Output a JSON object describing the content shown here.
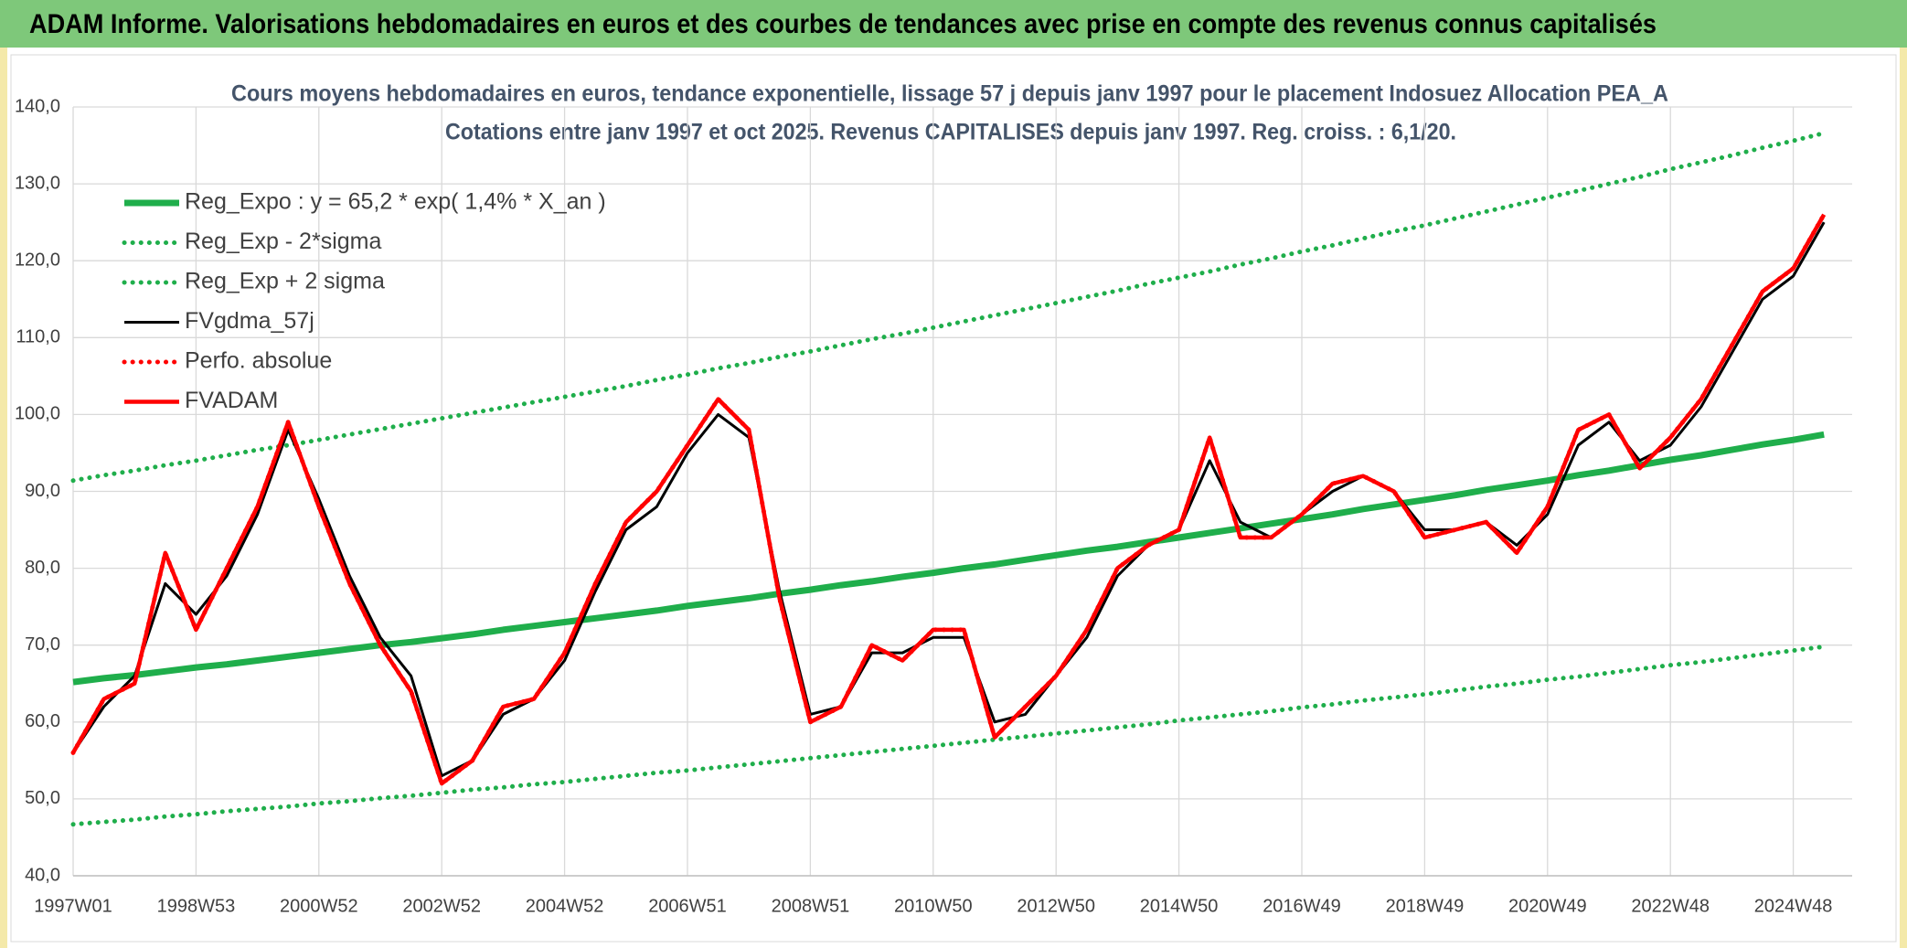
{
  "header": {
    "title": "ADAM Informe. Valorisations hebdomadaires en euros et des courbes de tendances avec prise en compte des revenus connus capitalisés"
  },
  "chart_data": {
    "type": "line",
    "title": "Cours moyens hebdomadaires en euros, tendance exponentielle, lissage 57 j depuis janv 1997 pour le placement Indosuez Allocation PEA_A",
    "subtitle": "Cotations entre janv 1997 et oct 2025. Revenus CAPITALISES depuis janv 1997. Reg. croiss. : 6,1/20.",
    "categories": [
      "1997W01",
      null,
      null,
      null,
      "1998W53",
      null,
      null,
      null,
      "2000W52",
      null,
      null,
      null,
      "2002W52",
      null,
      null,
      null,
      "2004W52",
      null,
      null,
      null,
      "2006W51",
      null,
      null,
      null,
      "2008W51",
      null,
      null,
      null,
      "2010W50",
      null,
      null,
      null,
      "2012W50",
      null,
      null,
      null,
      "2014W50",
      null,
      null,
      null,
      "2016W49",
      null,
      null,
      null,
      "2018W49",
      null,
      null,
      null,
      "2020W49",
      null,
      null,
      null,
      "2022W48",
      null,
      null,
      null,
      "2024W48",
      null
    ],
    "ylim": [
      40,
      140
    ],
    "yticks": [
      {
        "value": 40,
        "label": "40,0"
      },
      {
        "value": 50,
        "label": "50,0"
      },
      {
        "value": 60,
        "label": "60,0"
      },
      {
        "value": 70,
        "label": "70,0"
      },
      {
        "value": 80,
        "label": "80,0"
      },
      {
        "value": 90,
        "label": "90,0"
      },
      {
        "value": 100,
        "label": "100,0"
      },
      {
        "value": 110,
        "label": "110,0"
      },
      {
        "value": 120,
        "label": "120,0"
      },
      {
        "value": 130,
        "label": "130,0"
      },
      {
        "value": 140,
        "label": "140,0"
      }
    ],
    "grid": true,
    "legend": "upper left",
    "series": [
      {
        "name": "Reg_Expo : y = 65,2 * exp( 1,4% *  X_an )",
        "color": "#1fae4b",
        "line_style": "solid-thick",
        "values": [
          65.2,
          65.7,
          66.1,
          66.6,
          67.1,
          67.5,
          68.0,
          68.5,
          69.0,
          69.5,
          70.0,
          70.4,
          70.9,
          71.4,
          72.0,
          72.5,
          73.0,
          73.5,
          74.0,
          74.5,
          75.1,
          75.6,
          76.1,
          76.7,
          77.2,
          77.8,
          78.3,
          78.9,
          79.4,
          80.0,
          80.5,
          81.1,
          81.7,
          82.3,
          82.8,
          83.4,
          84.0,
          84.6,
          85.2,
          85.8,
          86.4,
          87.0,
          87.7,
          88.3,
          88.9,
          89.5,
          90.2,
          90.8,
          91.4,
          92.1,
          92.7,
          93.4,
          94.1,
          94.7,
          95.4,
          96.1,
          96.7,
          97.4
        ]
      },
      {
        "name": "Reg_Exp - 2*sigma",
        "color": "#1fae4b",
        "line_style": "dotted",
        "values": [
          46.7,
          47.0,
          47.3,
          47.7,
          48.0,
          48.4,
          48.7,
          49.0,
          49.4,
          49.7,
          50.1,
          50.4,
          50.8,
          51.2,
          51.5,
          51.9,
          52.2,
          52.6,
          53.0,
          53.4,
          53.7,
          54.1,
          54.5,
          54.9,
          55.3,
          55.7,
          56.1,
          56.5,
          56.9,
          57.3,
          57.7,
          58.1,
          58.5,
          58.9,
          59.3,
          59.7,
          60.2,
          60.6,
          61.0,
          61.4,
          61.9,
          62.3,
          62.8,
          63.2,
          63.6,
          64.1,
          64.6,
          65.0,
          65.5,
          65.9,
          66.4,
          66.9,
          67.4,
          67.8,
          68.3,
          68.8,
          69.3,
          69.8
        ]
      },
      {
        "name": "Reg_Exp + 2 sigma",
        "color": "#1fae4b",
        "line_style": "dotted",
        "values": [
          91.4,
          92.1,
          92.7,
          93.4,
          94.0,
          94.7,
          95.4,
          96.0,
          96.7,
          97.4,
          98.1,
          98.8,
          99.5,
          100.2,
          100.9,
          101.6,
          102.3,
          103.0,
          103.7,
          104.5,
          105.2,
          106.0,
          106.7,
          107.5,
          108.2,
          109.0,
          109.8,
          110.5,
          111.3,
          112.1,
          112.9,
          113.7,
          114.5,
          115.3,
          116.1,
          117.0,
          117.8,
          118.6,
          119.5,
          120.3,
          121.2,
          122.0,
          122.9,
          123.8,
          124.6,
          125.5,
          126.4,
          127.3,
          128.2,
          129.1,
          130.0,
          130.9,
          131.9,
          132.8,
          133.7,
          134.7,
          135.6,
          136.6
        ]
      },
      {
        "name": "FVgdma_57j",
        "color": "#000000",
        "line_style": "solid",
        "values": [
          56,
          62,
          66,
          78,
          74,
          79,
          87,
          98,
          89,
          79,
          71,
          66,
          53,
          55,
          61,
          63,
          68,
          77,
          85,
          88,
          95,
          100,
          97,
          77,
          61,
          62,
          69,
          69,
          71,
          71,
          60,
          61,
          66,
          71,
          79,
          83,
          85,
          94,
          86,
          84,
          87,
          90,
          92,
          90,
          85,
          85,
          86,
          83,
          87,
          96,
          99,
          94,
          96,
          101,
          108,
          115,
          118,
          125
        ]
      },
      {
        "name": "Perfo. absolue",
        "color": "#ff0000",
        "line_style": "dotted",
        "values": [
          56,
          63,
          65,
          82,
          72,
          80,
          88,
          99,
          88,
          78,
          70,
          64,
          52,
          55,
          62,
          63,
          69,
          78,
          86,
          90,
          96,
          102,
          98,
          76,
          60,
          62,
          70,
          68,
          72,
          72,
          58,
          62,
          66,
          72,
          80,
          83,
          85,
          97,
          84,
          84,
          87,
          91,
          92,
          90,
          84,
          85,
          86,
          82,
          88,
          98,
          100,
          93,
          97,
          102,
          109,
          116,
          119,
          126
        ]
      },
      {
        "name": "FVADAM",
        "color": "#ff0000",
        "line_style": "solid",
        "values": [
          56,
          63,
          65,
          82,
          72,
          80,
          88,
          99,
          88,
          78,
          70,
          64,
          52,
          55,
          62,
          63,
          69,
          78,
          86,
          90,
          96,
          102,
          98,
          76,
          60,
          62,
          70,
          68,
          72,
          72,
          58,
          62,
          66,
          72,
          80,
          83,
          85,
          97,
          84,
          84,
          87,
          91,
          92,
          90,
          84,
          85,
          86,
          82,
          88,
          98,
          100,
          93,
          97,
          102,
          109,
          116,
          119,
          126
        ]
      }
    ]
  }
}
